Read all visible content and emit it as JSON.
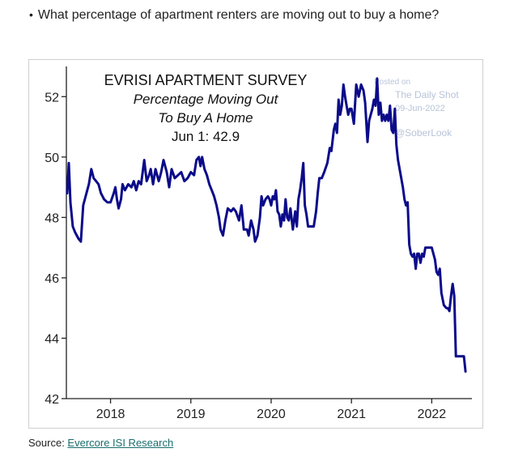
{
  "question": {
    "bullet": "•",
    "text": "What percentage of apartment renters are moving out to buy a home?"
  },
  "source": {
    "prefix": "Source: ",
    "link_text": "Evercore ISI Research"
  },
  "watermark": {
    "line1": "Posted on",
    "line2": "The Daily Shot",
    "line3": "09-Jun-2022",
    "line4": "@SoberLook"
  },
  "colors": {
    "line": "#0b0b8a",
    "axis": "#222222",
    "link": "#1a6e6e"
  },
  "chart_data": {
    "type": "line",
    "title": "EVRISI APARTMENT SURVEY",
    "subtitle_line1": "Percentage Moving Out",
    "subtitle_line2": "To Buy A Home",
    "annotation": "Jun 1: 42.9",
    "xlabel": "",
    "ylabel": "",
    "xlim": [
      2017.45,
      2022.5
    ],
    "ylim": [
      42,
      53
    ],
    "y_ticks": [
      42,
      44,
      46,
      48,
      50,
      52
    ],
    "y_tick_labels": [
      "42",
      "44",
      "46",
      "48",
      "50",
      "52"
    ],
    "x_ticks": [
      2018,
      2019,
      2020,
      2021,
      2022
    ],
    "x_tick_labels": [
      "2018",
      "2019",
      "2020",
      "2021",
      "2022"
    ],
    "grid": false,
    "legend": "none",
    "series": [
      {
        "points": [
          [
            2017.46,
            48.8
          ],
          [
            2017.48,
            49.8
          ],
          [
            2017.5,
            48.5
          ],
          [
            2017.53,
            47.7
          ],
          [
            2017.56,
            47.5
          ],
          [
            2017.6,
            47.3
          ],
          [
            2017.63,
            47.2
          ],
          [
            2017.66,
            48.4
          ],
          [
            2017.7,
            48.8
          ],
          [
            2017.73,
            49.1
          ],
          [
            2017.76,
            49.6
          ],
          [
            2017.79,
            49.3
          ],
          [
            2017.82,
            49.2
          ],
          [
            2017.85,
            49.1
          ],
          [
            2017.88,
            48.8
          ],
          [
            2017.92,
            48.6
          ],
          [
            2017.96,
            48.5
          ],
          [
            2018.0,
            48.5
          ],
          [
            2018.04,
            48.8
          ],
          [
            2018.06,
            49.0
          ],
          [
            2018.08,
            48.6
          ],
          [
            2018.1,
            48.3
          ],
          [
            2018.13,
            48.6
          ],
          [
            2018.15,
            49.1
          ],
          [
            2018.18,
            48.9
          ],
          [
            2018.22,
            49.1
          ],
          [
            2018.26,
            49.0
          ],
          [
            2018.29,
            49.2
          ],
          [
            2018.32,
            48.9
          ],
          [
            2018.35,
            49.2
          ],
          [
            2018.38,
            49.1
          ],
          [
            2018.42,
            49.9
          ],
          [
            2018.45,
            49.2
          ],
          [
            2018.48,
            49.4
          ],
          [
            2018.5,
            49.6
          ],
          [
            2018.53,
            49.1
          ],
          [
            2018.56,
            49.6
          ],
          [
            2018.6,
            49.2
          ],
          [
            2018.63,
            49.5
          ],
          [
            2018.66,
            49.9
          ],
          [
            2018.7,
            49.5
          ],
          [
            2018.73,
            49.0
          ],
          [
            2018.76,
            49.6
          ],
          [
            2018.8,
            49.3
          ],
          [
            2018.84,
            49.4
          ],
          [
            2018.88,
            49.5
          ],
          [
            2018.92,
            49.2
          ],
          [
            2018.96,
            49.3
          ],
          [
            2019.0,
            49.5
          ],
          [
            2019.04,
            49.4
          ],
          [
            2019.07,
            49.9
          ],
          [
            2019.1,
            50.0
          ],
          [
            2019.12,
            49.7
          ],
          [
            2019.14,
            50.0
          ],
          [
            2019.17,
            49.6
          ],
          [
            2019.2,
            49.4
          ],
          [
            2019.23,
            49.1
          ],
          [
            2019.26,
            48.9
          ],
          [
            2019.29,
            48.7
          ],
          [
            2019.32,
            48.4
          ],
          [
            2019.35,
            48.0
          ],
          [
            2019.37,
            47.6
          ],
          [
            2019.4,
            47.4
          ],
          [
            2019.43,
            47.9
          ],
          [
            2019.46,
            48.3
          ],
          [
            2019.5,
            48.2
          ],
          [
            2019.53,
            48.3
          ],
          [
            2019.56,
            48.2
          ],
          [
            2019.6,
            47.9
          ],
          [
            2019.63,
            48.4
          ],
          [
            2019.66,
            47.6
          ],
          [
            2019.7,
            47.6
          ],
          [
            2019.72,
            47.4
          ],
          [
            2019.75,
            47.9
          ],
          [
            2019.78,
            47.6
          ],
          [
            2019.8,
            47.2
          ],
          [
            2019.83,
            47.4
          ],
          [
            2019.86,
            48.0
          ],
          [
            2019.88,
            48.7
          ],
          [
            2019.9,
            48.4
          ],
          [
            2019.93,
            48.6
          ],
          [
            2019.96,
            48.7
          ],
          [
            2019.98,
            48.6
          ],
          [
            2020.0,
            48.4
          ],
          [
            2020.02,
            48.7
          ],
          [
            2020.04,
            48.6
          ],
          [
            2020.06,
            48.9
          ],
          [
            2020.08,
            48.2
          ],
          [
            2020.1,
            48.1
          ],
          [
            2020.12,
            47.7
          ],
          [
            2020.14,
            48.1
          ],
          [
            2020.16,
            47.9
          ],
          [
            2020.18,
            48.6
          ],
          [
            2020.2,
            48.0
          ],
          [
            2020.22,
            47.9
          ],
          [
            2020.24,
            48.3
          ],
          [
            2020.27,
            47.6
          ],
          [
            2020.3,
            48.2
          ],
          [
            2020.32,
            47.7
          ],
          [
            2020.34,
            48.6
          ],
          [
            2020.36,
            48.9
          ],
          [
            2020.38,
            49.3
          ],
          [
            2020.4,
            49.8
          ],
          [
            2020.42,
            48.4
          ],
          [
            2020.44,
            48.1
          ],
          [
            2020.46,
            47.7
          ],
          [
            2020.5,
            47.7
          ],
          [
            2020.53,
            47.7
          ],
          [
            2020.56,
            48.2
          ],
          [
            2020.58,
            48.8
          ],
          [
            2020.6,
            49.3
          ],
          [
            2020.63,
            49.3
          ],
          [
            2020.66,
            49.5
          ],
          [
            2020.7,
            49.8
          ],
          [
            2020.73,
            50.3
          ],
          [
            2020.75,
            50.2
          ],
          [
            2020.78,
            50.9
          ],
          [
            2020.8,
            51.1
          ],
          [
            2020.82,
            50.8
          ],
          [
            2020.84,
            51.9
          ],
          [
            2020.86,
            51.4
          ],
          [
            2020.88,
            51.7
          ],
          [
            2020.9,
            52.4
          ],
          [
            2020.92,
            52.0
          ],
          [
            2020.94,
            51.7
          ],
          [
            2020.96,
            51.4
          ],
          [
            2020.98,
            51.6
          ],
          [
            2021.0,
            51.6
          ],
          [
            2021.03,
            51.1
          ],
          [
            2021.06,
            52.4
          ],
          [
            2021.09,
            52.0
          ],
          [
            2021.12,
            52.4
          ],
          [
            2021.15,
            52.2
          ],
          [
            2021.17,
            51.8
          ],
          [
            2021.2,
            50.5
          ],
          [
            2021.22,
            51.2
          ],
          [
            2021.24,
            51.4
          ],
          [
            2021.26,
            51.6
          ],
          [
            2021.28,
            51.9
          ],
          [
            2021.3,
            51.7
          ],
          [
            2021.32,
            52.6
          ],
          [
            2021.34,
            51.4
          ],
          [
            2021.36,
            51.8
          ],
          [
            2021.38,
            51.2
          ],
          [
            2021.4,
            51.4
          ],
          [
            2021.42,
            51.2
          ],
          [
            2021.44,
            51.4
          ],
          [
            2021.46,
            51.2
          ],
          [
            2021.48,
            51.7
          ],
          [
            2021.5,
            50.9
          ],
          [
            2021.52,
            50.8
          ],
          [
            2021.54,
            51.6
          ],
          [
            2021.56,
            50.4
          ],
          [
            2021.58,
            49.9
          ],
          [
            2021.6,
            49.6
          ],
          [
            2021.62,
            49.3
          ],
          [
            2021.64,
            49.0
          ],
          [
            2021.66,
            48.6
          ],
          [
            2021.68,
            48.4
          ],
          [
            2021.7,
            48.5
          ],
          [
            2021.72,
            47.1
          ],
          [
            2021.74,
            46.8
          ],
          [
            2021.76,
            46.7
          ],
          [
            2021.78,
            46.8
          ],
          [
            2021.8,
            46.3
          ],
          [
            2021.82,
            46.8
          ],
          [
            2021.84,
            46.8
          ],
          [
            2021.86,
            46.5
          ],
          [
            2021.88,
            46.8
          ],
          [
            2021.9,
            46.7
          ],
          [
            2021.92,
            47.0
          ],
          [
            2021.96,
            47.0
          ],
          [
            2022.0,
            47.0
          ],
          [
            2022.02,
            46.8
          ],
          [
            2022.04,
            46.6
          ],
          [
            2022.06,
            46.2
          ],
          [
            2022.08,
            46.1
          ],
          [
            2022.1,
            46.3
          ],
          [
            2022.12,
            45.5
          ],
          [
            2022.15,
            45.1
          ],
          [
            2022.18,
            45.0
          ],
          [
            2022.2,
            45.0
          ],
          [
            2022.22,
            44.9
          ],
          [
            2022.24,
            45.4
          ],
          [
            2022.26,
            45.8
          ],
          [
            2022.28,
            45.4
          ],
          [
            2022.3,
            43.4
          ],
          [
            2022.35,
            43.4
          ],
          [
            2022.4,
            43.4
          ],
          [
            2022.42,
            42.9
          ]
        ]
      }
    ]
  }
}
